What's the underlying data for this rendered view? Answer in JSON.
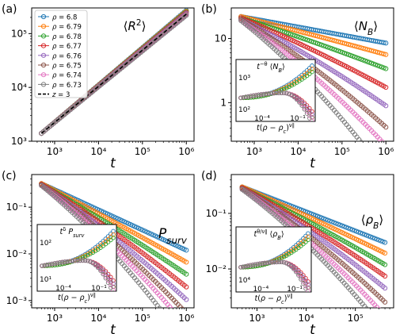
{
  "colors": [
    "#1f77b4",
    "#ff7f0e",
    "#2ca02c",
    "#d62728",
    "#9467bd",
    "#8c564b",
    "#e377c2",
    "#7f7f7f"
  ],
  "chart_data": [
    {
      "type": "scatter",
      "panel_label": "(a)",
      "title": "⟨R²⟩",
      "xlabel": "t",
      "xscale": "log",
      "yscale": "log",
      "xlim": [
        300,
        1500000
      ],
      "ylim": [
        1000,
        300000
      ],
      "xticks": [
        {
          "v": 1000,
          "label": "10³"
        },
        {
          "v": 10000,
          "label": "10⁴"
        },
        {
          "v": 100000,
          "label": "10⁵"
        },
        {
          "v": 1000000,
          "label": "10⁶"
        }
      ],
      "yticks": [
        {
          "v": 1000,
          "label": "10³"
        },
        {
          "v": 10000,
          "label": "10⁴"
        },
        {
          "v": 100000,
          "label": "10⁵"
        }
      ],
      "legend_position": "top-left",
      "reference_line": {
        "name": "z = 3",
        "x": [
          500,
          1000000
        ],
        "y": [
          1400,
          230000
        ]
      },
      "series": [
        {
          "name": "ρ = 6.8",
          "x": [
            500,
            1000000
          ],
          "y": [
            1400,
            270000
          ]
        },
        {
          "name": "ρ = 6.79",
          "x": [
            500,
            1000000
          ],
          "y": [
            1400,
            262000
          ]
        },
        {
          "name": "ρ = 6.78",
          "x": [
            500,
            1000000
          ],
          "y": [
            1400,
            254000
          ]
        },
        {
          "name": "ρ = 6.77",
          "x": [
            500,
            1000000
          ],
          "y": [
            1400,
            247000
          ]
        },
        {
          "name": "ρ = 6.76",
          "x": [
            500,
            1000000
          ],
          "y": [
            1400,
            240000
          ]
        },
        {
          "name": "ρ = 6.75",
          "x": [
            500,
            1000000
          ],
          "y": [
            1400,
            232000
          ]
        },
        {
          "name": "ρ = 6.74",
          "x": [
            500,
            1000000
          ],
          "y": [
            1400,
            225000
          ]
        },
        {
          "name": "ρ = 6.73",
          "x": [
            500,
            1000000
          ],
          "y": [
            1400,
            218000
          ]
        }
      ]
    },
    {
      "type": "scatter",
      "panel_label": "(b)",
      "title": "⟨N_B⟩",
      "xlabel": "t",
      "xscale": "log",
      "yscale": "log",
      "xlim": [
        300,
        1500000
      ],
      "ylim": [
        0.25,
        30
      ],
      "xticks": [
        {
          "v": 1000,
          "label": "10³"
        },
        {
          "v": 10000,
          "label": "10⁴"
        },
        {
          "v": 100000,
          "label": "10⁵"
        },
        {
          "v": 1000000,
          "label": "10⁶"
        }
      ],
      "yticks": [
        {
          "v": 1,
          "label": "1"
        },
        {
          "v": 10,
          "label": "10"
        }
      ],
      "series": [
        {
          "name": "ρ = 6.8",
          "x": [
            500,
            1000000
          ],
          "y": [
            22,
            8.5
          ]
        },
        {
          "name": "ρ = 6.79",
          "x": [
            500,
            1000000
          ],
          "y": [
            22,
            6.0
          ]
        },
        {
          "name": "ρ = 6.78",
          "x": [
            500,
            1000000
          ],
          "y": [
            21,
            4.0
          ]
        },
        {
          "name": "ρ = 6.77",
          "x": [
            500,
            1000000
          ],
          "y": [
            21,
            2.4
          ]
        },
        {
          "name": "ρ = 6.76",
          "x": [
            500,
            1000000
          ],
          "y": [
            20,
            1.5
          ]
        },
        {
          "name": "ρ = 6.75",
          "x": [
            500,
            1000000
          ],
          "y": [
            20,
            0.9
          ]
        },
        {
          "name": "ρ = 6.74",
          "x": [
            500,
            1000000
          ],
          "y": [
            19,
            0.6
          ]
        },
        {
          "name": "ρ = 6.73",
          "x": [
            500,
            1000000
          ],
          "y": [
            19,
            0.32
          ]
        }
      ],
      "inset": {
        "ylabel": "t^{-θ} ⟨N_B⟩",
        "xlabel": "t(ρ − ρ_c)^{ν∥}",
        "ytick_labels": [
          "10³",
          "10²"
        ],
        "xtick_labels": [
          "10⁻⁴",
          "10⁻¹"
        ]
      }
    },
    {
      "type": "scatter",
      "panel_label": "(c)",
      "title": "P_surv",
      "xlabel": "t",
      "xscale": "log",
      "yscale": "log",
      "xlim": [
        300,
        1500000
      ],
      "ylim": [
        0.0007,
        0.5
      ],
      "xticks": [
        {
          "v": 1000,
          "label": "10³"
        },
        {
          "v": 10000,
          "label": "10⁴"
        },
        {
          "v": 100000,
          "label": "10⁵"
        },
        {
          "v": 1000000,
          "label": "10⁶"
        }
      ],
      "yticks": [
        {
          "v": 0.001,
          "label": "10⁻³"
        },
        {
          "v": 0.01,
          "label": "10⁻²"
        },
        {
          "v": 0.1,
          "label": "10⁻¹"
        }
      ],
      "series": [
        {
          "name": "ρ = 6.8",
          "x": [
            500,
            1000000
          ],
          "y": [
            0.32,
            0.012
          ]
        },
        {
          "name": "ρ = 6.79",
          "x": [
            500,
            1000000
          ],
          "y": [
            0.32,
            0.008
          ]
        },
        {
          "name": "ρ = 6.78",
          "x": [
            500,
            1000000
          ],
          "y": [
            0.31,
            0.0055
          ]
        },
        {
          "name": "ρ = 6.77",
          "x": [
            500,
            1000000
          ],
          "y": [
            0.31,
            0.0038
          ]
        },
        {
          "name": "ρ = 6.76",
          "x": [
            500,
            1000000
          ],
          "y": [
            0.3,
            0.0027
          ]
        },
        {
          "name": "ρ = 6.75",
          "x": [
            500,
            1000000
          ],
          "y": [
            0.3,
            0.0019
          ]
        },
        {
          "name": "ρ = 6.74",
          "x": [
            500,
            1000000
          ],
          "y": [
            0.29,
            0.0014
          ]
        },
        {
          "name": "ρ = 6.73",
          "x": [
            500,
            1000000
          ],
          "y": [
            0.29,
            0.0009
          ]
        }
      ],
      "inset": {
        "ylabel": "t^{δ} P_surv",
        "xlabel": "t(ρ − ρ_c)^{ν∥}",
        "ytick_labels": [
          "10²",
          "10¹"
        ],
        "xtick_labels": [
          "10⁻⁴",
          "10⁻¹"
        ]
      }
    },
    {
      "type": "scatter",
      "panel_label": "(d)",
      "title": "⟨ρ_B⟩",
      "xlabel": "t",
      "xscale": "log",
      "yscale": "log",
      "xlim": [
        300,
        600000
      ],
      "ylim": [
        0.002,
        0.5
      ],
      "xticks": [
        {
          "v": 1000,
          "label": "10³"
        },
        {
          "v": 10000,
          "label": "10⁴"
        },
        {
          "v": 100000,
          "label": "10⁵"
        }
      ],
      "yticks": [
        {
          "v": 0.01,
          "label": "10⁻²"
        },
        {
          "v": 0.1,
          "label": "10⁻¹"
        }
      ],
      "series": [
        {
          "name": "ρ = 6.8",
          "x": [
            500,
            400000
          ],
          "y": [
            0.3,
            0.03
          ]
        },
        {
          "name": "ρ = 6.79",
          "x": [
            500,
            400000
          ],
          "y": [
            0.3,
            0.022
          ]
        },
        {
          "name": "ρ = 6.78",
          "x": [
            500,
            400000
          ],
          "y": [
            0.29,
            0.016
          ]
        },
        {
          "name": "ρ = 6.77",
          "x": [
            500,
            400000
          ],
          "y": [
            0.29,
            0.012
          ]
        },
        {
          "name": "ρ = 6.76",
          "x": [
            500,
            400000
          ],
          "y": [
            0.28,
            0.009
          ]
        },
        {
          "name": "ρ = 6.75",
          "x": [
            500,
            400000
          ],
          "y": [
            0.28,
            0.0065
          ]
        },
        {
          "name": "ρ = 6.74",
          "x": [
            500,
            400000
          ],
          "y": [
            0.27,
            0.0048
          ]
        },
        {
          "name": "ρ = 6.73",
          "x": [
            500,
            400000
          ],
          "y": [
            0.27,
            0.0035
          ]
        }
      ],
      "inset": {
        "ylabel": "t^{θ/ν∥} ⟨ρ_B⟩",
        "xlabel": "t(ρ − ρ_c)^{ν∥}",
        "ytick_labels": [
          "10⁴"
        ],
        "xtick_labels": [
          "10⁻⁴",
          "10⁻¹"
        ]
      }
    }
  ]
}
